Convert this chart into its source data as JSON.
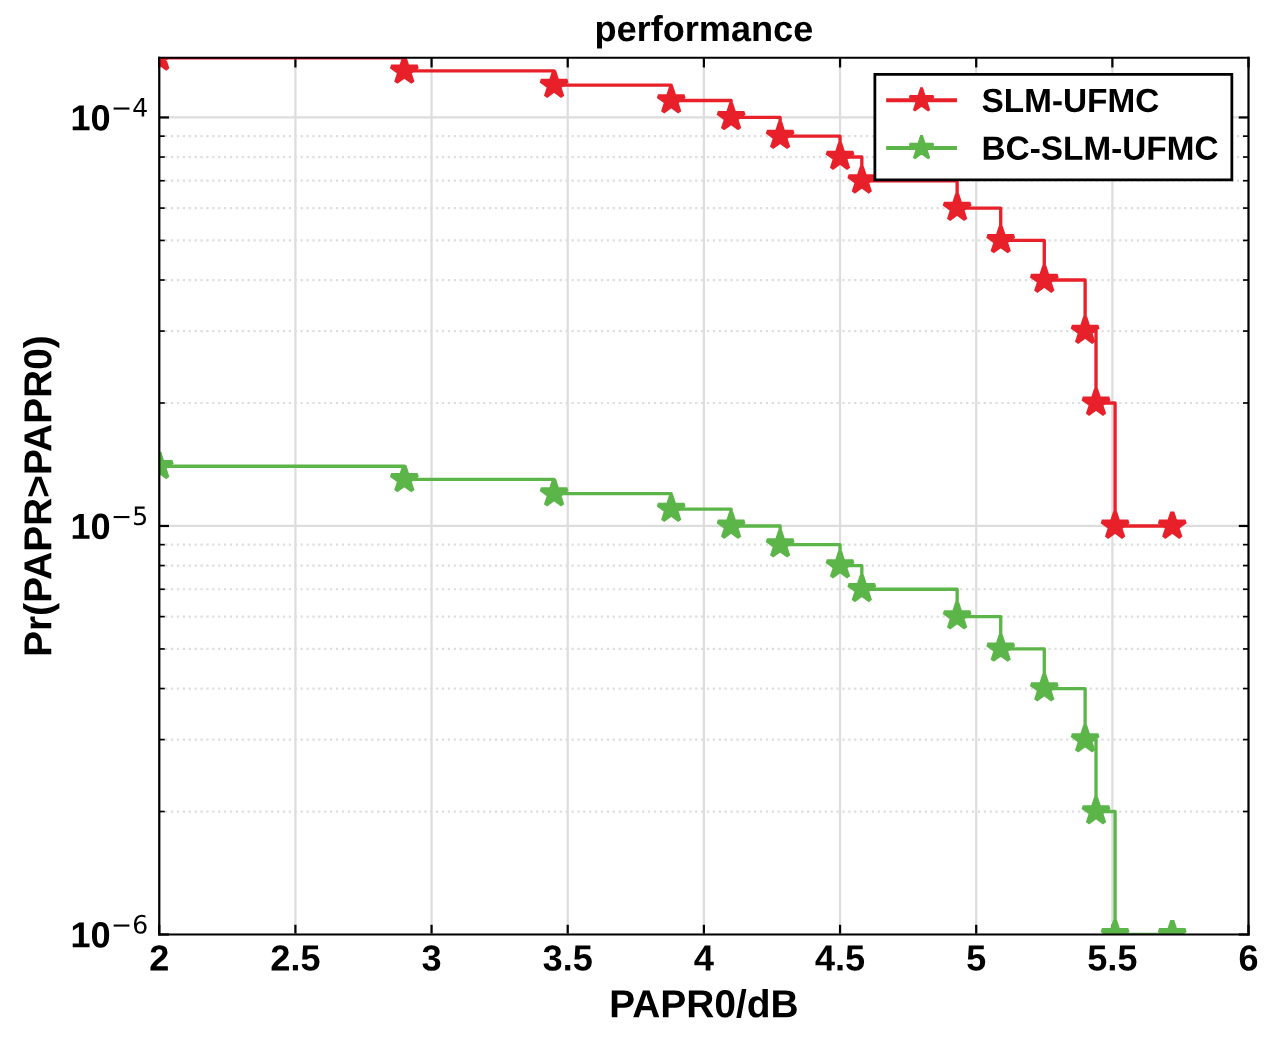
{
  "chart_data": {
    "type": "step",
    "title": "performance",
    "xlabel": "PAPR0/dB",
    "ylabel": "Pr(PAPR>PAPR0)",
    "log": "y",
    "grid": true,
    "legend": "top right",
    "marker": "star",
    "line_style": "solid",
    "xlim": [
      2,
      6
    ],
    "xticks": [
      2,
      2.5,
      3,
      3.5,
      4,
      4.5,
      5,
      5.5,
      6
    ],
    "ylim": [
      1e-06,
      0.00014
    ],
    "yticks": [
      {
        "value": 1e-06,
        "label": "10$^{−6}$"
      },
      {
        "value": 1e-05,
        "label": "10$^{−5}$"
      },
      {
        "value": 0.0001,
        "label": "10$^{−4}$"
      }
    ],
    "x": [
      2,
      2.9,
      3.45,
      3.88,
      4.1,
      4.28,
      4.5,
      4.58,
      4.93,
      5.09,
      5.25,
      5.4,
      5.44,
      5.51,
      5.72
    ],
    "series": [
      {
        "name": "SLM-UFMC",
        "color": "#e8202a",
        "values": [
          0.00014,
          0.00013,
          0.00012,
          0.00011,
          0.0001,
          9e-05,
          8e-05,
          7e-05,
          6e-05,
          5e-05,
          4e-05,
          3e-05,
          2e-05,
          1e-05,
          1e-05
        ]
      },
      {
        "name": "BC-SLM-UFMC",
        "color": "#5cb548",
        "values": [
          1.4e-05,
          1.3e-05,
          1.2e-05,
          1.1e-05,
          1e-05,
          9e-06,
          8e-06,
          7e-06,
          6e-06,
          5e-06,
          4e-06,
          3e-06,
          2e-06,
          1e-06,
          1e-06
        ]
      }
    ]
  }
}
